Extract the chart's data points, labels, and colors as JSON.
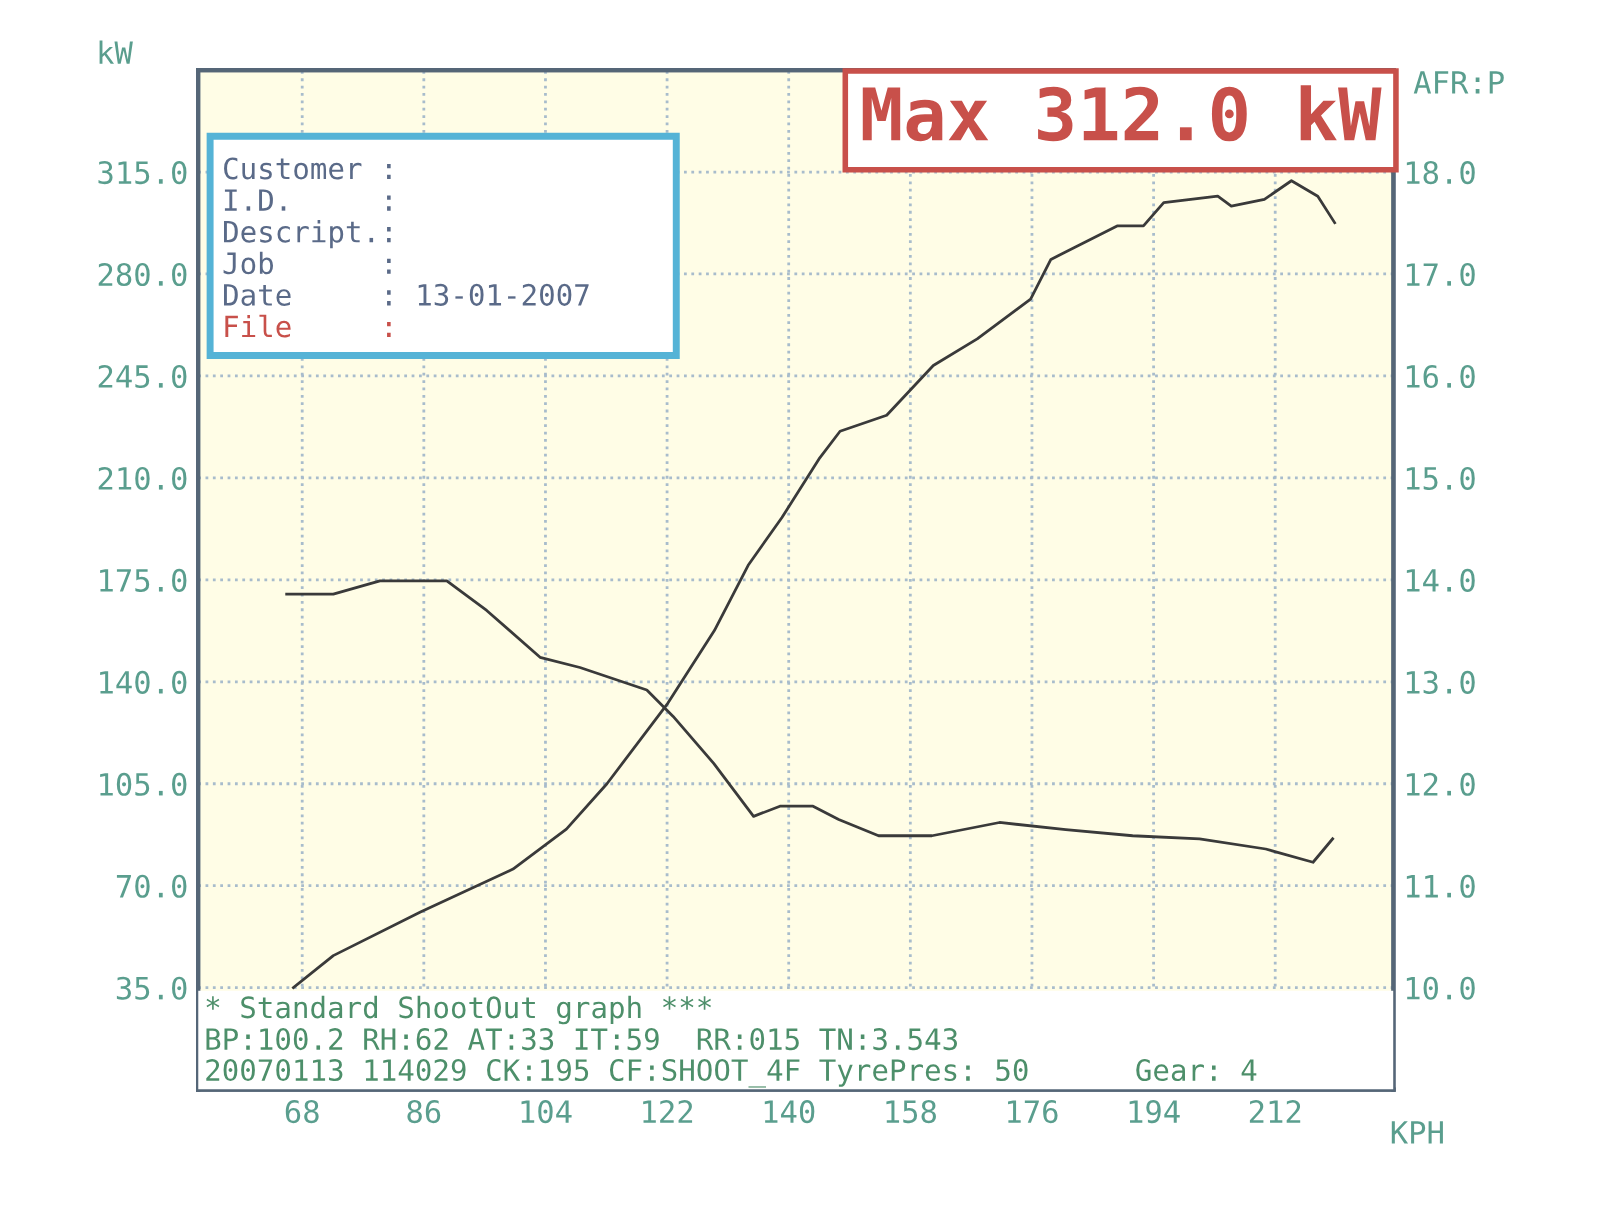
{
  "chart_data": {
    "type": "line",
    "xlabel": "KPH",
    "ylabel": "kW",
    "y2label": "AFR:P",
    "xlim": [
      52.6,
      229.5
    ],
    "xticks": [
      68,
      86,
      104,
      122,
      140,
      158,
      176,
      194,
      212
    ],
    "ylim": [
      0,
      350
    ],
    "yticks": [
      {
        "value": 35,
        "label": "35.0"
      },
      {
        "value": 70,
        "label": "70.0"
      },
      {
        "value": 105,
        "label": "105.0"
      },
      {
        "value": 140,
        "label": "140.0"
      },
      {
        "value": 175,
        "label": "175.0"
      },
      {
        "value": 210,
        "label": "210.0"
      },
      {
        "value": 245,
        "label": "245.0"
      },
      {
        "value": 280,
        "label": "280.0"
      },
      {
        "value": 315,
        "label": "315.0"
      }
    ],
    "y2lim": [
      9,
      19
    ],
    "y2ticks": [
      {
        "value": 10,
        "label": "10.0"
      },
      {
        "value": 11,
        "label": "11.0"
      },
      {
        "value": 12,
        "label": "12.0"
      },
      {
        "value": 13,
        "label": "13.0"
      },
      {
        "value": 14,
        "label": "14.0"
      },
      {
        "value": 15,
        "label": "15.0"
      },
      {
        "value": 16,
        "label": "16.0"
      },
      {
        "value": 17,
        "label": "17.0"
      },
      {
        "value": 18,
        "label": "18.0"
      }
    ],
    "grid": true,
    "line_style": "solid",
    "series": [
      {
        "color": "#3a3a3a",
        "x": [
          66.7,
          72.6,
          85.5,
          99.2,
          107.1,
          113.1,
          122.1,
          129,
          134,
          139,
          144.6,
          147.6,
          154.5,
          161.4,
          167.9,
          175.8,
          178.8,
          188.6,
          192.5,
          195.5,
          203.5,
          205.5,
          210.4,
          214.4,
          218.3,
          220.8
        ],
        "values": [
          35,
          46,
          61,
          75.7,
          89.4,
          105,
          132.6,
          157.6,
          180,
          196.4,
          216.9,
          226,
          231.5,
          248.6,
          257.7,
          271.4,
          285,
          296.5,
          296.5,
          304.5,
          306.7,
          303.3,
          305.6,
          312,
          306.7,
          297.6
        ]
      },
      {
        "color": "#3a3a3a",
        "axis": "y2",
        "x": [
          65.7,
          72.6,
          79.5,
          89.4,
          95.3,
          103.2,
          109.1,
          119,
          122.9,
          128.9,
          134.8,
          138.7,
          143.6,
          147.4,
          153.3,
          161.2,
          171.2,
          181,
          190.9,
          200.8,
          210.6,
          217.6,
          220.5
        ],
        "values": [
          13.86,
          13.86,
          13.99,
          13.99,
          13.7,
          13.24,
          13.14,
          12.92,
          12.66,
          12.2,
          11.68,
          11.78,
          11.78,
          11.65,
          11.49,
          11.49,
          11.62,
          11.55,
          11.49,
          11.46,
          11.36,
          11.23,
          11.46
        ]
      }
    ],
    "annotations": [
      "Max 312.0 kW",
      "Customer :",
      "I.D.     :",
      "Descript.:",
      "Job      :",
      "Date     : 13-01-2007",
      "File     :",
      "* Standard ShootOut graph ***",
      "BP:100.2 RH:62 AT:33 IT:59  RR:015 TN:3.543",
      "20070113 114029 CK:195 CF:SHOOT_4F TyrePres: 50      Gear: 4"
    ]
  }
}
